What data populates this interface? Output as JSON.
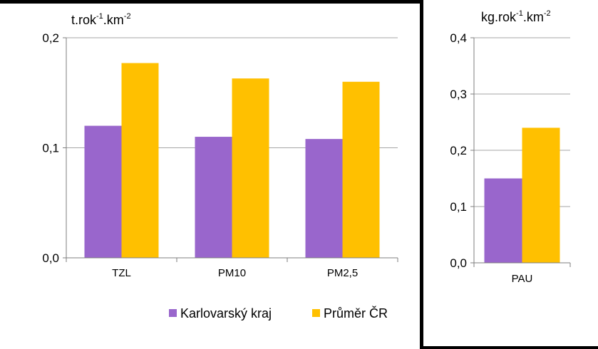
{
  "chart_data": [
    {
      "type": "bar",
      "unit_label": "t.rok",
      "unit_sup1": "-1",
      "unit_mid": ".km",
      "unit_sup2": "-2",
      "categories": [
        "TZL",
        "PM10",
        "PM2,5"
      ],
      "series": [
        {
          "name": "Karlovarský kraj",
          "values": [
            0.12,
            0.11,
            0.108
          ],
          "color": "#9966cc"
        },
        {
          "name": "Průměr ČR",
          "values": [
            0.177,
            0.163,
            0.16
          ],
          "color": "#ffc000"
        }
      ],
      "yticks": [
        "0,0",
        "0,1",
        "0,2"
      ],
      "ylim": [
        0,
        0.2
      ],
      "grid": true,
      "legend": "bottom"
    },
    {
      "type": "bar",
      "unit_label": "kg.rok",
      "unit_sup1": "-1",
      "unit_mid": ".km",
      "unit_sup2": "-2",
      "categories": [
        "PAU"
      ],
      "series": [
        {
          "name": "Karlovarský kraj",
          "values": [
            0.15
          ],
          "color": "#9966cc"
        },
        {
          "name": "Průměr ČR",
          "values": [
            0.24
          ],
          "color": "#ffc000"
        }
      ],
      "yticks": [
        "0,0",
        "0,1",
        "0,2",
        "0,3",
        "0,4"
      ],
      "ylim": [
        0,
        0.4
      ],
      "grid": true,
      "legend": "none"
    }
  ]
}
